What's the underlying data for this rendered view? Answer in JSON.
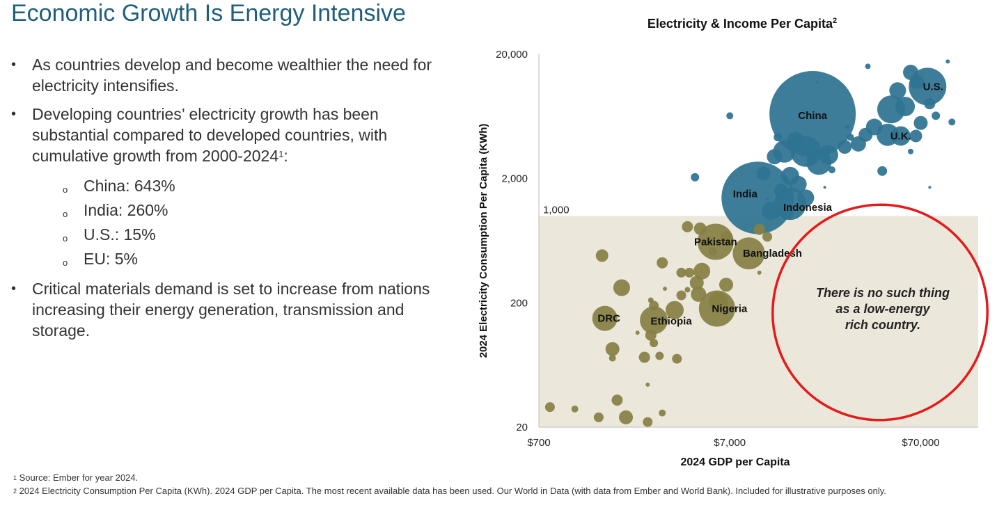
{
  "header": {
    "title": "Economic Growth Is Energy Intensive"
  },
  "bullets": [
    {
      "text": "As countries develop and become wealthier the need for electricity intensifies."
    },
    {
      "text": "Developing countries’ electricity growth has been substantial compared to developed countries, with cumulative growth from 2000-2024",
      "sup": "1",
      "after": ":"
    },
    {
      "text": "Critical materials demand is set to increase from nations increasing their energy generation, transmission and storage."
    }
  ],
  "sub_bullets": [
    {
      "label": "China: 643%"
    },
    {
      "label": "India: 260%"
    },
    {
      "label": "U.S.: 15%"
    },
    {
      "label": "EU: 5%"
    }
  ],
  "footnotes": [
    {
      "num": "1",
      "text": "Source: Ember for year 2024."
    },
    {
      "num": "2",
      "text": "2024 Electricity Consumption Per Capita (KWh). 2024 GDP per Capita. The most recent available data has been used. Our World in Data (with data from Ember and World Bank). Included for illustrative purposes only."
    }
  ],
  "colors": {
    "title": "#1f5f7a",
    "developed": "#2e7391",
    "developing": "#877f45",
    "band": "#ebe7da",
    "callout": "#e41b1b"
  },
  "chart_data": {
    "type": "scatter",
    "title": "Electricity & Income Per Capita",
    "title_sup": "2",
    "xlabel": "2024 GDP per Capita",
    "ylabel": "2024 Electricity Consumption  Per Capita (KWh)",
    "x_scale": "log",
    "y_scale": "log",
    "xlim": [
      700,
      140000
    ],
    "ylim": [
      20,
      20000
    ],
    "x_ticks": [
      {
        "value": 700,
        "label": "$700"
      },
      {
        "value": 7000,
        "label": "$7,000"
      },
      {
        "value": 70000,
        "label": "$70,000"
      }
    ],
    "y_ticks": [
      {
        "value": 20000,
        "label": "20,000"
      },
      {
        "value": 2000,
        "label": "2,000"
      },
      {
        "value": 200,
        "label": "200"
      },
      {
        "value": 20,
        "label": "20"
      }
    ],
    "band": {
      "below_y": 1000,
      "label": "1,000"
    },
    "annotation": "There is no such thing as a low-energy rich country.",
    "points": [
      {
        "name": "China",
        "label": "China",
        "x": 19000,
        "y": 6600,
        "size": 62,
        "group": "high"
      },
      {
        "name": "India",
        "label": "India",
        "x": 9800,
        "y": 1400,
        "size": 52,
        "group": "high"
      },
      {
        "name": "U.S.",
        "label": "U.S.",
        "x": 76000,
        "y": 11000,
        "size": 27,
        "group": "high"
      },
      {
        "name": "Indonesia",
        "label": "Indonesia",
        "x": 14500,
        "y": 1250,
        "size": 23,
        "group": "high"
      },
      {
        "name": "U.K.",
        "label": "U.K.",
        "x": 55000,
        "y": 4400,
        "size": 14,
        "group": "high"
      },
      {
        "name": "Pakistan",
        "label": "Pakistan",
        "x": 5900,
        "y": 620,
        "size": 26,
        "group": "low"
      },
      {
        "name": "Bangladesh",
        "label": "Bangladesh",
        "x": 8800,
        "y": 500,
        "size": 23,
        "group": "low"
      },
      {
        "name": "Nigeria",
        "label": "Nigeria",
        "x": 6000,
        "y": 180,
        "size": 26,
        "group": "low"
      },
      {
        "name": "DRC",
        "label": "DRC",
        "x": 1550,
        "y": 150,
        "size": 18,
        "group": "low"
      },
      {
        "name": "Ethiopia",
        "label": "Ethiopia",
        "x": 2800,
        "y": 145,
        "size": 20,
        "group": "low"
      },
      {
        "name": "",
        "x": 49000,
        "y": 7200,
        "size": 20,
        "group": "high"
      },
      {
        "name": "",
        "x": 47000,
        "y": 4500,
        "size": 16,
        "group": "high"
      },
      {
        "name": "",
        "x": 58000,
        "y": 7600,
        "size": 14,
        "group": "high"
      },
      {
        "name": "",
        "x": 62000,
        "y": 14300,
        "size": 11,
        "group": "high"
      },
      {
        "name": "",
        "x": 53000,
        "y": 10200,
        "size": 12,
        "group": "high"
      },
      {
        "name": "",
        "x": 67000,
        "y": 12000,
        "size": 10,
        "group": "high"
      },
      {
        "name": "",
        "x": 70000,
        "y": 5600,
        "size": 10,
        "group": "high"
      },
      {
        "name": "",
        "x": 66000,
        "y": 4400,
        "size": 9,
        "group": "high"
      },
      {
        "name": "",
        "x": 40000,
        "y": 5200,
        "size": 12,
        "group": "high"
      },
      {
        "name": "",
        "x": 36000,
        "y": 4500,
        "size": 10,
        "group": "high"
      },
      {
        "name": "",
        "x": 33000,
        "y": 3800,
        "size": 11,
        "group": "high"
      },
      {
        "name": "",
        "x": 28000,
        "y": 3600,
        "size": 10,
        "group": "high"
      },
      {
        "name": "",
        "x": 23000,
        "y": 3100,
        "size": 14,
        "group": "high"
      },
      {
        "name": "",
        "x": 17500,
        "y": 3300,
        "size": 22,
        "group": "high"
      },
      {
        "name": "",
        "x": 15500,
        "y": 4000,
        "size": 13,
        "group": "high"
      },
      {
        "name": "",
        "x": 20500,
        "y": 2700,
        "size": 18,
        "group": "high"
      },
      {
        "name": "",
        "x": 13500,
        "y": 3300,
        "size": 16,
        "group": "high"
      },
      {
        "name": "",
        "x": 12000,
        "y": 3000,
        "size": 11,
        "group": "high"
      },
      {
        "name": "",
        "x": 14500,
        "y": 2100,
        "size": 13,
        "group": "high"
      },
      {
        "name": "",
        "x": 16000,
        "y": 1800,
        "size": 12,
        "group": "high"
      },
      {
        "name": "",
        "x": 17500,
        "y": 1400,
        "size": 12,
        "group": "high"
      },
      {
        "name": "",
        "x": 13000,
        "y": 1600,
        "size": 10,
        "group": "high"
      },
      {
        "name": "",
        "x": 10500,
        "y": 2200,
        "size": 10,
        "group": "high"
      },
      {
        "name": "",
        "x": 11500,
        "y": 1100,
        "size": 13,
        "group": "high"
      },
      {
        "name": "",
        "x": 14000,
        "y": 1050,
        "size": 9,
        "group": "high"
      },
      {
        "name": "",
        "x": 12500,
        "y": 4300,
        "size": 6,
        "group": "high"
      },
      {
        "name": "",
        "x": 7000,
        "y": 6400,
        "size": 5,
        "group": "high"
      },
      {
        "name": "",
        "x": 4600,
        "y": 2050,
        "size": 6,
        "group": "high"
      },
      {
        "name": "",
        "x": 24000,
        "y": 2350,
        "size": 5,
        "group": "high"
      },
      {
        "name": "",
        "x": 44000,
        "y": 2300,
        "size": 7,
        "group": "high"
      },
      {
        "name": "",
        "x": 78000,
        "y": 8000,
        "size": 8,
        "group": "high"
      },
      {
        "name": "",
        "x": 84000,
        "y": 6400,
        "size": 6,
        "group": "high"
      },
      {
        "name": "",
        "x": 102000,
        "y": 5700,
        "size": 5,
        "group": "high"
      },
      {
        "name": "",
        "x": 97000,
        "y": 17500,
        "size": 3,
        "group": "high"
      },
      {
        "name": "",
        "x": 37000,
        "y": 16000,
        "size": 4,
        "group": "high"
      },
      {
        "name": "",
        "x": 29000,
        "y": 5200,
        "size": 3,
        "group": "high"
      },
      {
        "name": "",
        "x": 62000,
        "y": 3300,
        "size": 4,
        "group": "high"
      },
      {
        "name": "",
        "x": 30000,
        "y": 4300,
        "size": 5,
        "group": "high"
      },
      {
        "name": "",
        "x": 20000,
        "y": 12000,
        "size": 2,
        "group": "high"
      },
      {
        "name": "",
        "x": 78000,
        "y": 1700,
        "size": 2,
        "group": "high"
      },
      {
        "name": "",
        "x": 22000,
        "y": 1700,
        "size": 2,
        "group": "high"
      },
      {
        "name": "",
        "x": 11000,
        "y": 1370,
        "size": 2,
        "group": "high"
      },
      {
        "name": "",
        "x": 1500,
        "y": 480,
        "size": 9,
        "group": "low"
      },
      {
        "name": "",
        "x": 1900,
        "y": 265,
        "size": 12,
        "group": "low"
      },
      {
        "name": "",
        "x": 1700,
        "y": 85,
        "size": 10,
        "group": "low"
      },
      {
        "name": "",
        "x": 1700,
        "y": 72,
        "size": 5,
        "group": "low"
      },
      {
        "name": "",
        "x": 2500,
        "y": 73,
        "size": 8,
        "group": "low"
      },
      {
        "name": "",
        "x": 3000,
        "y": 75,
        "size": 6,
        "group": "low"
      },
      {
        "name": "",
        "x": 3700,
        "y": 71,
        "size": 7,
        "group": "low"
      },
      {
        "name": "",
        "x": 2700,
        "y": 110,
        "size": 8,
        "group": "low"
      },
      {
        "name": "",
        "x": 2800,
        "y": 95,
        "size": 6,
        "group": "low"
      },
      {
        "name": "",
        "x": 3600,
        "y": 175,
        "size": 13,
        "group": "low"
      },
      {
        "name": "",
        "x": 2800,
        "y": 190,
        "size": 7,
        "group": "low"
      },
      {
        "name": "",
        "x": 2700,
        "y": 210,
        "size": 4,
        "group": "low"
      },
      {
        "name": "",
        "x": 2600,
        "y": 44,
        "size": 3,
        "group": "low"
      },
      {
        "name": "",
        "x": 3100,
        "y": 420,
        "size": 8,
        "group": "low"
      },
      {
        "name": "",
        "x": 3900,
        "y": 350,
        "size": 7,
        "group": "low"
      },
      {
        "name": "",
        "x": 4300,
        "y": 350,
        "size": 7,
        "group": "low"
      },
      {
        "name": "",
        "x": 5000,
        "y": 360,
        "size": 12,
        "group": "low"
      },
      {
        "name": "",
        "x": 4700,
        "y": 290,
        "size": 10,
        "group": "low"
      },
      {
        "name": "",
        "x": 4800,
        "y": 235,
        "size": 11,
        "group": "low"
      },
      {
        "name": "",
        "x": 3900,
        "y": 230,
        "size": 7,
        "group": "low"
      },
      {
        "name": "",
        "x": 4200,
        "y": 255,
        "size": 4,
        "group": "low"
      },
      {
        "name": "",
        "x": 6100,
        "y": 205,
        "size": 14,
        "group": "low"
      },
      {
        "name": "",
        "x": 6700,
        "y": 280,
        "size": 10,
        "group": "low"
      },
      {
        "name": "",
        "x": 4900,
        "y": 790,
        "size": 9,
        "group": "low"
      },
      {
        "name": "",
        "x": 4200,
        "y": 820,
        "size": 8,
        "group": "low"
      },
      {
        "name": "",
        "x": 6700,
        "y": 680,
        "size": 8,
        "group": "low"
      },
      {
        "name": "",
        "x": 5700,
        "y": 520,
        "size": 6,
        "group": "low"
      },
      {
        "name": "",
        "x": 10000,
        "y": 780,
        "size": 8,
        "group": "low"
      },
      {
        "name": "",
        "x": 11000,
        "y": 680,
        "size": 7,
        "group": "low"
      },
      {
        "name": "",
        "x": 10000,
        "y": 350,
        "size": 3,
        "group": "low"
      },
      {
        "name": "",
        "x": 3200,
        "y": 260,
        "size": 3,
        "group": "low"
      },
      {
        "name": "",
        "x": 2300,
        "y": 115,
        "size": 3,
        "group": "low"
      },
      {
        "name": "",
        "x": 800,
        "y": 29,
        "size": 7,
        "group": "low"
      },
      {
        "name": "",
        "x": 1080,
        "y": 28,
        "size": 5,
        "group": "low"
      },
      {
        "name": "",
        "x": 1440,
        "y": 24,
        "size": 7,
        "group": "low"
      },
      {
        "name": "",
        "x": 1800,
        "y": 33,
        "size": 8,
        "group": "low"
      },
      {
        "name": "",
        "x": 2000,
        "y": 24,
        "size": 10,
        "group": "low"
      },
      {
        "name": "",
        "x": 2600,
        "y": 22,
        "size": 7,
        "group": "low"
      },
      {
        "name": "",
        "x": 3100,
        "y": 26,
        "size": 5,
        "group": "low"
      }
    ]
  }
}
